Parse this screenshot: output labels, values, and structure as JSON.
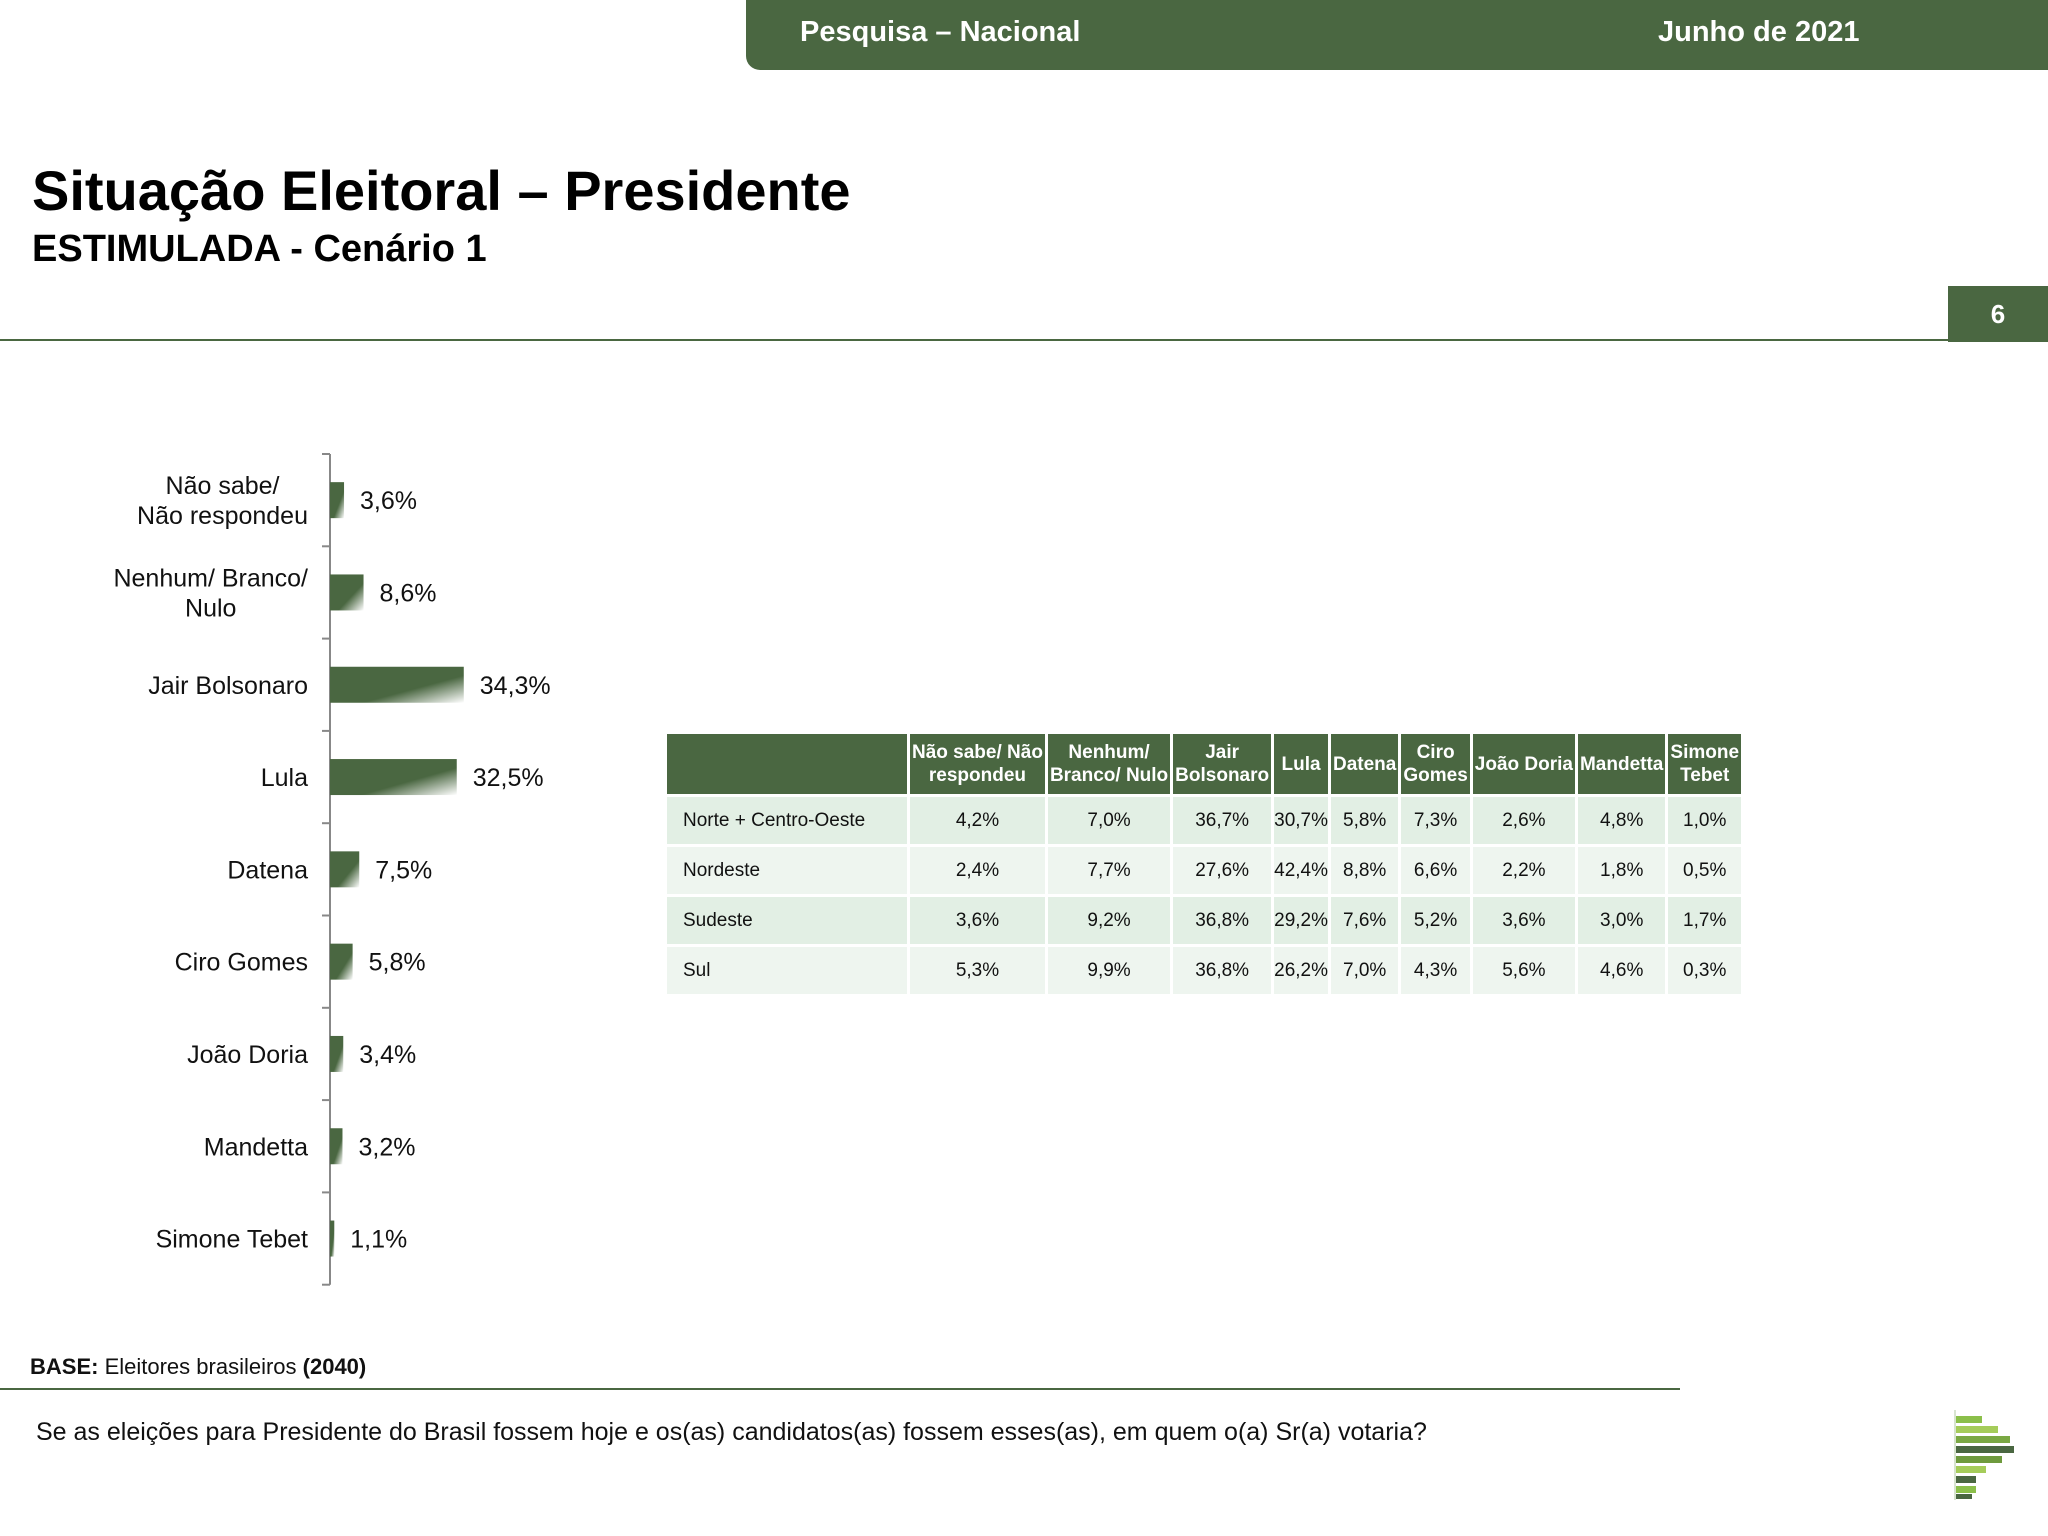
{
  "header": {
    "survey": "Pesquisa – Nacional",
    "date": "Junho de 2021",
    "title": "Situação Eleitoral – Presidente",
    "subtitle": "ESTIMULADA - Cenário 1",
    "page_number": "6"
  },
  "colors": {
    "brand_green": "#4a6741",
    "bar_light": "#ffffff",
    "row_odd": "#e2efe4",
    "row_even": "#eef5ef"
  },
  "chart_data": {
    "type": "bar",
    "orientation": "horizontal",
    "categories": [
      [
        "Não sabe/",
        "Não respondeu"
      ],
      [
        "Nenhum/ Branco/",
        "Nulo"
      ],
      [
        "Jair Bolsonaro"
      ],
      [
        "Lula"
      ],
      [
        "Datena"
      ],
      [
        "Ciro Gomes"
      ],
      [
        "João Doria"
      ],
      [
        "Mandetta"
      ],
      [
        "Simone Tebet"
      ]
    ],
    "values": [
      3.6,
      8.6,
      34.3,
      32.5,
      7.5,
      5.8,
      3.4,
      3.2,
      1.1
    ],
    "value_labels": [
      "3,6%",
      "8,6%",
      "34,3%",
      "32,5%",
      "7,5%",
      "5,8%",
      "3,4%",
      "3,2%",
      "1,1%"
    ],
    "unit": "%",
    "xlim": [
      0,
      100
    ]
  },
  "table": {
    "headers": [
      "",
      [
        "Não sabe/ Não",
        "respondeu"
      ],
      [
        "Nenhum/",
        "Branco/ Nulo"
      ],
      [
        "Jair",
        "Bolsonaro"
      ],
      [
        "Lula"
      ],
      [
        "Datena"
      ],
      [
        "Ciro",
        "Gomes"
      ],
      [
        "João Doria"
      ],
      [
        "Mandetta"
      ],
      [
        "Simone",
        "Tebet"
      ]
    ],
    "rows": [
      {
        "region": "Norte + Centro-Oeste",
        "values": [
          "4,2%",
          "7,0%",
          "36,7%",
          "30,7%",
          "5,8%",
          "7,3%",
          "2,6%",
          "4,8%",
          "1,0%"
        ]
      },
      {
        "region": "Nordeste",
        "values": [
          "2,4%",
          "7,7%",
          "27,6%",
          "42,4%",
          "8,8%",
          "6,6%",
          "2,2%",
          "1,8%",
          "0,5%"
        ]
      },
      {
        "region": "Sudeste",
        "values": [
          "3,6%",
          "9,2%",
          "36,8%",
          "29,2%",
          "7,6%",
          "5,2%",
          "3,6%",
          "3,0%",
          "1,7%"
        ]
      },
      {
        "region": "Sul",
        "values": [
          "5,3%",
          "9,9%",
          "36,8%",
          "26,2%",
          "7,0%",
          "4,3%",
          "5,6%",
          "4,6%",
          "0,3%"
        ]
      }
    ]
  },
  "footer": {
    "base_label": "BASE:",
    "base_text": " Eleitores brasileiros ",
    "base_n": "(2040)",
    "question": "Se as eleições para Presidente do Brasil fossem hoje e os(as) candidatos(as) fossem esses(as), em quem o(a) Sr(a) votaria?"
  },
  "logo": {
    "icon": "institute-logo-icon"
  }
}
